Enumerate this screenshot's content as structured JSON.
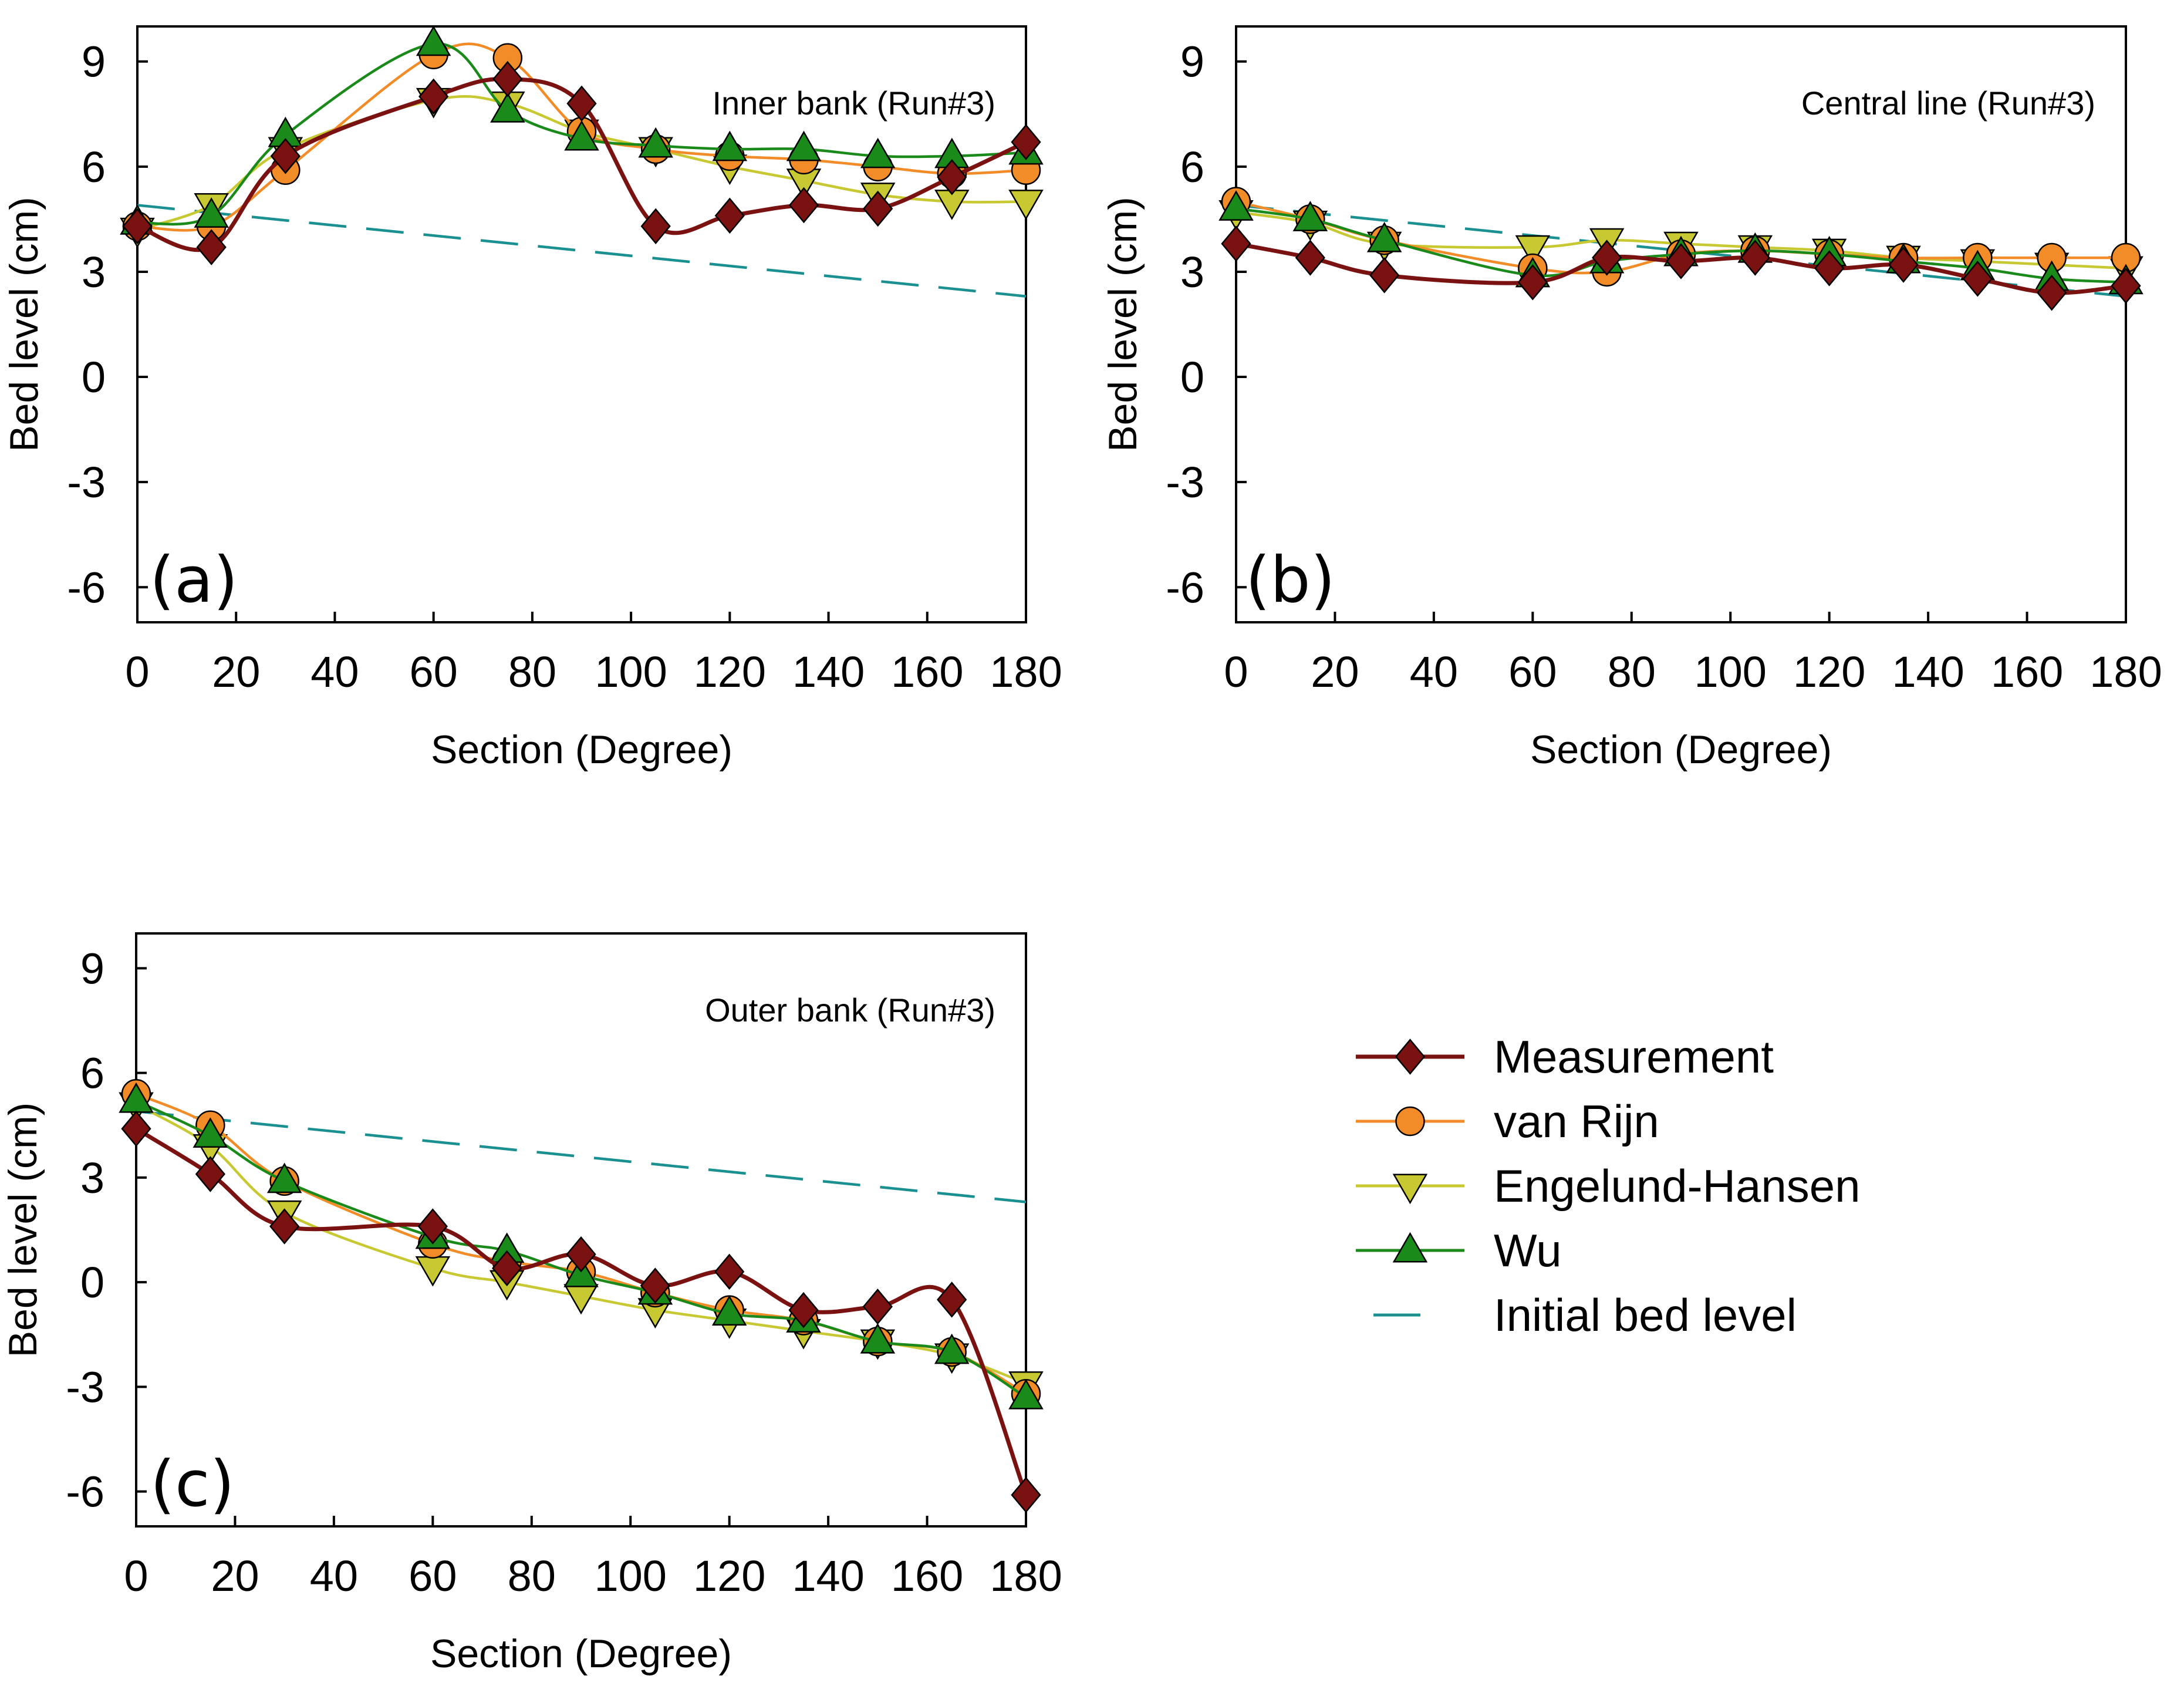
{
  "legend": [
    {
      "name": "Measurement",
      "color": "#7a1212",
      "marker": "diamond"
    },
    {
      "name": "van Rijn",
      "color": "#f28c28",
      "marker": "circle"
    },
    {
      "name": "Engelund-Hansen",
      "color": "#c8c832",
      "marker": "triangle-down"
    },
    {
      "name": "Wu",
      "color": "#1a8a1a",
      "marker": "triangle-up"
    },
    {
      "name": "Initial bed level",
      "color": "#1a9090",
      "marker": "dash"
    }
  ],
  "chart_data": [
    {
      "type": "line",
      "panel": "(a)",
      "title": "Inner bank (Run#3)",
      "xlabel": "Section (Degree)",
      "ylabel": "Bed level (cm)",
      "xlim": [
        0,
        180
      ],
      "ylim": [
        -7,
        10
      ],
      "xticks": [
        0,
        20,
        40,
        60,
        80,
        100,
        120,
        140,
        160,
        180
      ],
      "yticks": [
        -6,
        -3,
        0,
        3,
        6,
        9
      ],
      "x": [
        0,
        15,
        30,
        60,
        75,
        90,
        105,
        120,
        135,
        150,
        165,
        180
      ],
      "series": [
        {
          "name": "Measurement",
          "values": [
            4.3,
            3.7,
            6.3,
            8.0,
            8.5,
            7.8,
            4.3,
            4.6,
            4.9,
            4.8,
            5.7,
            6.7
          ]
        },
        {
          "name": "van Rijn",
          "values": [
            4.3,
            4.3,
            5.9,
            9.2,
            9.1,
            7.0,
            6.5,
            6.3,
            6.2,
            6.0,
            5.8,
            5.9
          ]
        },
        {
          "name": "Engelund-Hansen",
          "values": [
            4.2,
            4.9,
            6.5,
            7.9,
            7.8,
            7.0,
            6.5,
            6.0,
            5.6,
            5.2,
            5.0,
            5.0
          ]
        },
        {
          "name": "Wu",
          "values": [
            4.4,
            4.6,
            6.9,
            9.5,
            7.6,
            6.8,
            6.6,
            6.5,
            6.5,
            6.3,
            6.3,
            6.4
          ]
        },
        {
          "name": "Initial bed level",
          "x": [
            0,
            180
          ],
          "values": [
            4.9,
            2.3
          ]
        }
      ]
    },
    {
      "type": "line",
      "panel": "(b)",
      "title": "Central line (Run#3)",
      "xlabel": "Section (Degree)",
      "ylabel": "Bed level (cm)",
      "xlim": [
        0,
        180
      ],
      "ylim": [
        -7,
        10
      ],
      "xticks": [
        0,
        20,
        40,
        60,
        80,
        100,
        120,
        140,
        160,
        180
      ],
      "yticks": [
        -6,
        -3,
        0,
        3,
        6,
        9
      ],
      "x": [
        0,
        15,
        30,
        60,
        75,
        90,
        105,
        120,
        135,
        150,
        165,
        180
      ],
      "series": [
        {
          "name": "Measurement",
          "values": [
            3.8,
            3.4,
            2.9,
            2.7,
            3.4,
            3.3,
            3.4,
            3.1,
            3.2,
            2.8,
            2.4,
            2.6
          ]
        },
        {
          "name": "van Rijn",
          "values": [
            5.0,
            4.5,
            3.9,
            3.1,
            3.0,
            3.5,
            3.6,
            3.5,
            3.4,
            3.4,
            3.4,
            3.4
          ]
        },
        {
          "name": "Engelund-Hansen",
          "values": [
            4.7,
            4.4,
            3.8,
            3.7,
            3.9,
            3.8,
            3.7,
            3.6,
            3.4,
            3.3,
            3.2,
            3.1
          ]
        },
        {
          "name": "Wu",
          "values": [
            4.8,
            4.5,
            3.9,
            2.9,
            3.3,
            3.5,
            3.6,
            3.5,
            3.3,
            3.1,
            2.8,
            2.7
          ]
        },
        {
          "name": "Initial bed level",
          "x": [
            0,
            180
          ],
          "values": [
            4.9,
            2.3
          ]
        }
      ]
    },
    {
      "type": "line",
      "panel": "(c)",
      "title": "Outer bank (Run#3)",
      "xlabel": "Section (Degree)",
      "ylabel": "Bed level (cm)",
      "xlim": [
        0,
        180
      ],
      "ylim": [
        -7,
        10
      ],
      "xticks": [
        0,
        20,
        40,
        60,
        80,
        100,
        120,
        140,
        160,
        180
      ],
      "yticks": [
        -6,
        -3,
        0,
        3,
        6,
        9
      ],
      "x": [
        0,
        15,
        30,
        60,
        75,
        90,
        105,
        120,
        135,
        150,
        165,
        180
      ],
      "series": [
        {
          "name": "Measurement",
          "values": [
            4.4,
            3.1,
            1.6,
            1.6,
            0.4,
            0.8,
            -0.1,
            0.3,
            -0.8,
            -0.7,
            -0.5,
            -6.1
          ]
        },
        {
          "name": "van Rijn",
          "values": [
            5.4,
            4.5,
            2.9,
            1.1,
            0.6,
            0.3,
            -0.3,
            -0.8,
            -1.1,
            -1.7,
            -2.0,
            -3.2
          ]
        },
        {
          "name": "Engelund-Hansen",
          "values": [
            5.1,
            3.9,
            2.0,
            0.4,
            0.0,
            -0.4,
            -0.8,
            -1.1,
            -1.4,
            -1.7,
            -2.1,
            -2.9
          ]
        },
        {
          "name": "Wu",
          "values": [
            5.2,
            4.2,
            2.9,
            1.3,
            0.9,
            0.2,
            -0.3,
            -0.9,
            -1.1,
            -1.7,
            -2.0,
            -3.3
          ]
        },
        {
          "name": "Initial bed level",
          "x": [
            0,
            180
          ],
          "values": [
            4.9,
            2.3
          ]
        }
      ]
    }
  ]
}
